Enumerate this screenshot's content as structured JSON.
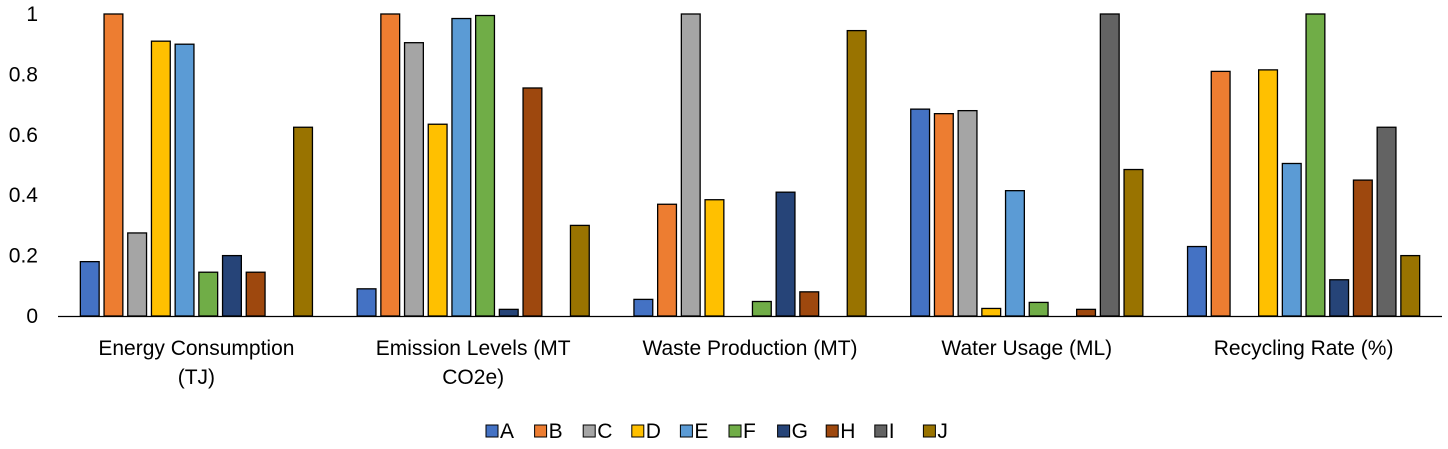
{
  "chart_data": {
    "type": "bar",
    "title": "",
    "xlabel": "",
    "ylabel": "",
    "ylim": [
      0,
      1
    ],
    "yticks": [
      {
        "value": 0,
        "label": "0"
      },
      {
        "value": 0.2,
        "label": "0.2"
      },
      {
        "value": 0.4,
        "label": "0.4"
      },
      {
        "value": 0.6,
        "label": "0.6"
      },
      {
        "value": 0.8,
        "label": "0.8"
      },
      {
        "value": 1,
        "label": "1"
      }
    ],
    "grid": false,
    "legend_position": "bottom",
    "categories": [
      [
        "Energy Consumption",
        "(TJ)"
      ],
      [
        "Emission Levels (MT",
        "CO2e)"
      ],
      [
        "Waste Production (MT)"
      ],
      [
        "Water Usage (ML)"
      ],
      [
        "Recycling Rate (%)"
      ]
    ],
    "series": [
      {
        "name": "A",
        "color": "#4472C4",
        "values": [
          0.18,
          0.09,
          0.055,
          0.685,
          0.23
        ]
      },
      {
        "name": "B",
        "color": "#ED7D31",
        "values": [
          1.0,
          1.0,
          0.37,
          0.67,
          0.81
        ]
      },
      {
        "name": "C",
        "color": "#A5A5A5",
        "values": [
          0.275,
          0.905,
          1.0,
          0.68,
          0.0
        ]
      },
      {
        "name": "D",
        "color": "#FFC000",
        "values": [
          0.91,
          0.635,
          0.385,
          0.025,
          0.815
        ]
      },
      {
        "name": "E",
        "color": "#5B9BD5",
        "values": [
          0.9,
          0.985,
          0.0,
          0.415,
          0.505
        ]
      },
      {
        "name": "F",
        "color": "#70AD47",
        "values": [
          0.145,
          0.995,
          0.048,
          0.045,
          1.0
        ]
      },
      {
        "name": "G",
        "color": "#264478",
        "values": [
          0.2,
          0.022,
          0.41,
          0.0,
          0.12
        ]
      },
      {
        "name": "H",
        "color": "#9E480E",
        "values": [
          0.145,
          0.755,
          0.08,
          0.022,
          0.45
        ]
      },
      {
        "name": "I",
        "color": "#636363",
        "values": [
          0.0,
          0.0,
          0.0,
          1.0,
          0.625
        ]
      },
      {
        "name": "J",
        "color": "#997300",
        "values": [
          0.625,
          0.3,
          0.945,
          0.485,
          0.2
        ]
      }
    ]
  }
}
